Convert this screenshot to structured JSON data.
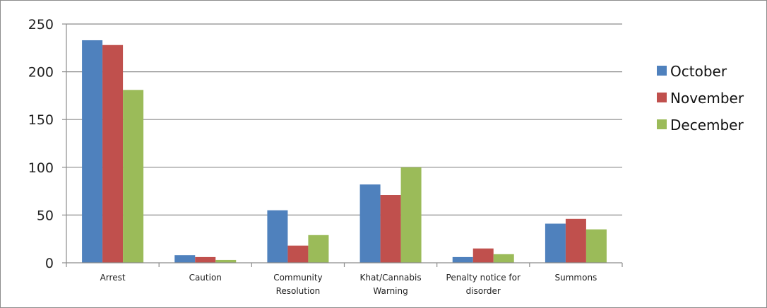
{
  "chart_data": {
    "type": "bar",
    "title": "",
    "xlabel": "",
    "ylabel": "",
    "categories": [
      [
        "Arrest"
      ],
      [
        "Caution"
      ],
      [
        "Community",
        "Resolution"
      ],
      [
        "Khat/Cannabis",
        "Warning"
      ],
      [
        "Penalty notice for",
        "disorder"
      ],
      [
        "Summons"
      ]
    ],
    "series": [
      {
        "name": "October",
        "color": "#4f81bd",
        "values": [
          233,
          8,
          55,
          82,
          6,
          41
        ]
      },
      {
        "name": "November",
        "color": "#c0504d",
        "values": [
          228,
          6,
          18,
          71,
          15,
          46
        ]
      },
      {
        "name": "December",
        "color": "#9bbb59",
        "values": [
          181,
          3,
          29,
          100,
          9,
          35
        ]
      }
    ],
    "ylim": [
      0,
      250
    ],
    "yticks": [
      0,
      50,
      100,
      150,
      200,
      250
    ],
    "grid": true,
    "legend_position": "right"
  }
}
